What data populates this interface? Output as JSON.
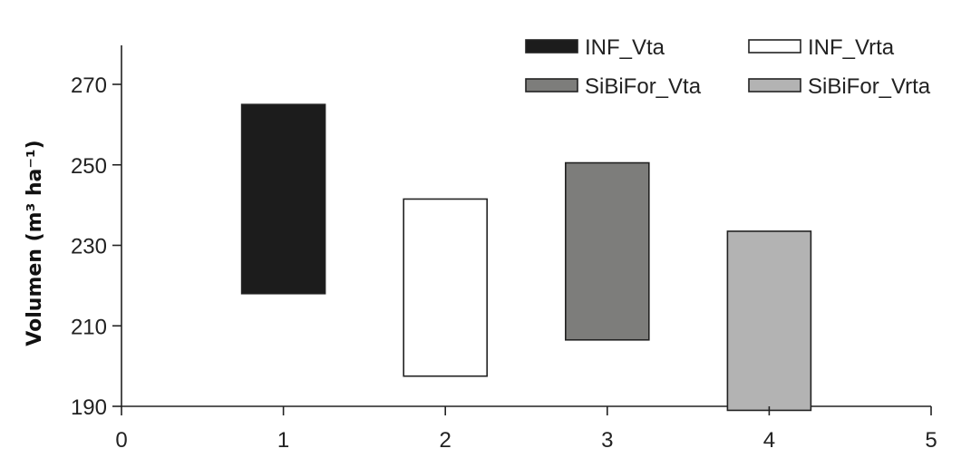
{
  "chart_data": {
    "type": "floating-bar",
    "title": "",
    "xlabel": "",
    "ylabel": "Volumen (m³ ha⁻¹)",
    "xlim": [
      0,
      5
    ],
    "ylim": [
      190,
      280
    ],
    "x_ticks": [
      "0",
      "1",
      "2",
      "3",
      "4",
      "5"
    ],
    "y_ticks": [
      "190",
      "210",
      "230",
      "250",
      "270"
    ],
    "grid": false,
    "legend_position": "top-right",
    "series": [
      {
        "name": "INF_Vta",
        "x": 1,
        "low": 218,
        "high": 265,
        "color": "#1c1c1c"
      },
      {
        "name": "INF_Vrta",
        "x": 2,
        "low": 197.5,
        "high": 241.5,
        "color": "#ffffff"
      },
      {
        "name": "SiBiFor_Vta",
        "x": 3,
        "low": 206.5,
        "high": 250.5,
        "color": "#7d7d7b"
      },
      {
        "name": "SiBiFor_Vrta",
        "x": 4,
        "low": 189,
        "high": 233.5,
        "color": "#b3b3b3"
      }
    ]
  }
}
